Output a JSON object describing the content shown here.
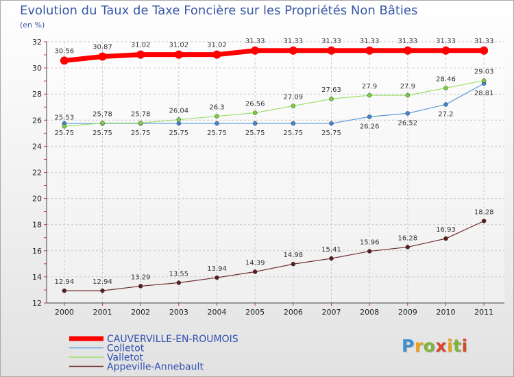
{
  "header": {
    "title": "Evolution du Taux de Taxe Foncière sur les Propriétés Non Bâties",
    "subtitle": "(en %)"
  },
  "logo": {
    "text": "Proxiti",
    "letters": [
      "P",
      "r",
      "o",
      "x",
      "i",
      "t",
      "i"
    ]
  },
  "chart_data": {
    "type": "line",
    "title": "Evolution du Taux de Taxe Foncière sur les Propriétés Non Bâties",
    "subtitle": "(en %)",
    "xlabel": "",
    "ylabel": "",
    "x": [
      "2000",
      "2001",
      "2002",
      "2003",
      "2004",
      "2005",
      "2006",
      "2007",
      "2008",
      "2009",
      "2010",
      "2011"
    ],
    "ylim": [
      12,
      32
    ],
    "yticks": [
      12,
      14,
      16,
      18,
      20,
      22,
      24,
      26,
      28,
      30,
      32
    ],
    "grid": true,
    "legend_position": "bottom-left",
    "series": [
      {
        "name": "CAUVERVILLE-EN-ROUMOIS",
        "color": "#ff0000",
        "values": [
          30.56,
          30.87,
          31.02,
          31.02,
          31.02,
          31.33,
          31.33,
          31.33,
          31.33,
          31.33,
          31.33,
          31.33
        ],
        "labels": [
          "30.56",
          "30.87",
          "31.02",
          "31.02",
          "31.02",
          "31.33",
          "31.33",
          "31.33",
          "31.33",
          "31.33",
          "31.33",
          "31.33"
        ]
      },
      {
        "name": "Colletot",
        "color": "#4a90d9",
        "values": [
          25.75,
          25.75,
          25.75,
          25.75,
          25.75,
          25.75,
          25.75,
          25.75,
          26.26,
          26.52,
          27.2,
          28.81
        ],
        "labels": [
          "25.75",
          "25.75",
          "25.75",
          "25.75",
          "25.75",
          "25.75",
          "25.75",
          "25.75",
          "26.26",
          "26.52",
          "27.2",
          "28.81"
        ]
      },
      {
        "name": "Valletot",
        "color": "#88d651",
        "values": [
          25.53,
          25.78,
          25.78,
          26.04,
          26.3,
          26.56,
          27.09,
          27.63,
          27.9,
          27.9,
          28.46,
          29.03
        ],
        "labels": [
          "25.53",
          "25.78",
          "25.78",
          "26.04",
          "26.3",
          "26.56",
          "27.09",
          "27.63",
          "27.9",
          "27.9",
          "28.46",
          "29.03"
        ]
      },
      {
        "name": "Appeville-Annebault",
        "color": "#7a2e2e",
        "values": [
          12.94,
          12.94,
          13.29,
          13.55,
          13.94,
          14.39,
          14.98,
          15.41,
          15.96,
          16.28,
          16.93,
          18.28
        ],
        "labels": [
          "12.94",
          "12.94",
          "13.29",
          "13.55",
          "13.94",
          "14.39",
          "14.98",
          "15.41",
          "15.96",
          "16.28",
          "16.93",
          "18.28"
        ]
      }
    ]
  }
}
